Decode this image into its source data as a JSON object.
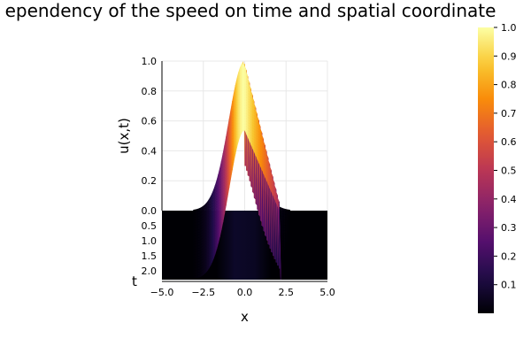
{
  "chart_data": {
    "type": "surface",
    "title": "ependency of the speed on time and spatial coordinate",
    "xlabel": "x",
    "ylabel": "t",
    "zlabel": "u(x,t)",
    "x_ticks": [
      "−5.0",
      "−2.5",
      "0.0",
      "2.5",
      "5.0"
    ],
    "x_tick_values": [
      -5.0,
      -2.5,
      0.0,
      2.5,
      5.0
    ],
    "xlim": [
      -5.0,
      5.0
    ],
    "t_ticks": [
      "0.0",
      "0.5",
      "1.0",
      "1.5",
      "2.0"
    ],
    "t_tick_values": [
      0.0,
      0.5,
      1.0,
      1.5,
      2.0
    ],
    "tlim": [
      0.0,
      2.3
    ],
    "z_ticks": [
      "0.2",
      "0.4",
      "0.6",
      "0.8",
      "1.0"
    ],
    "z_tick_values": [
      0.2,
      0.4,
      0.6,
      0.8,
      1.0
    ],
    "zlim": [
      0.0,
      1.0
    ],
    "colorbar": {
      "colormap": "inferno",
      "range": [
        0.0,
        1.0
      ],
      "tick_labels": [
        "0.1",
        "0.2",
        "0.3",
        "0.4",
        "0.5",
        "0.6",
        "0.7",
        "0.8",
        "0.9",
        "1.0"
      ],
      "tick_values": [
        0.1,
        0.2,
        0.3,
        0.4,
        0.5,
        0.6,
        0.7,
        0.8,
        0.9,
        1.0
      ]
    },
    "grid": true,
    "colors": {
      "background": "#ffffff",
      "floor": "#000004",
      "grid": "#e8e8e8"
    }
  }
}
